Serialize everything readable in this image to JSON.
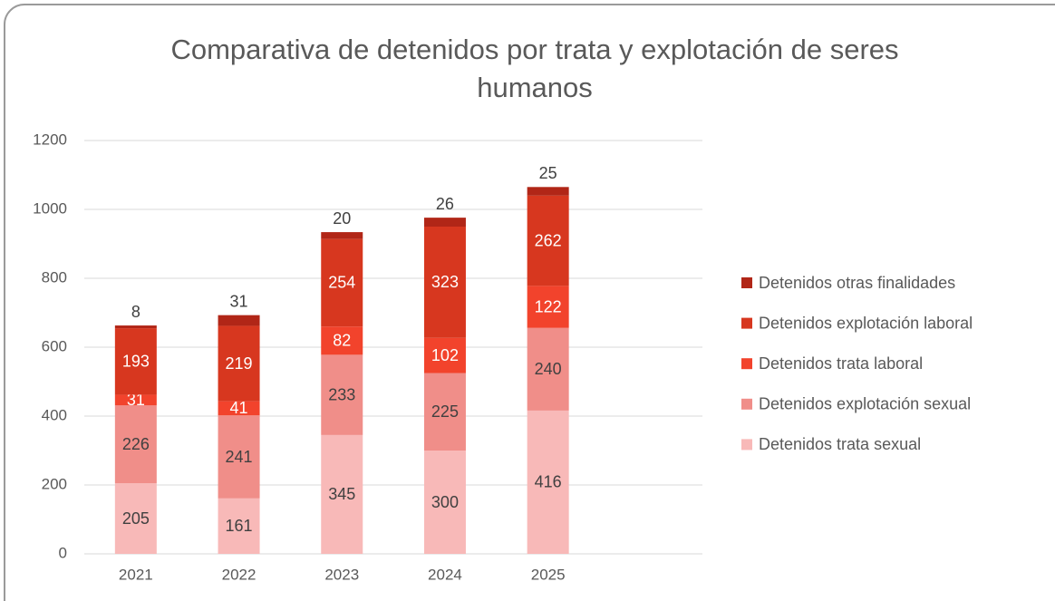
{
  "chart_data": {
    "type": "stacked_bar",
    "title": "Comparativa de detenidos por trata y explotación de seres humanos",
    "categories": [
      "2021",
      "2022",
      "2023",
      "2024",
      "2025"
    ],
    "series": [
      {
        "name": "Detenidos trata sexual",
        "color": "#f8b9b8",
        "values": [
          205,
          161,
          345,
          300,
          416
        ]
      },
      {
        "name": "Detenidos explotación sexual",
        "color": "#f08e89",
        "values": [
          226,
          241,
          233,
          225,
          240
        ]
      },
      {
        "name": "Detenidos trata laboral",
        "color": "#f2432c",
        "values": [
          31,
          41,
          82,
          102,
          122
        ]
      },
      {
        "name": "Detenidos explotación laboral",
        "color": "#d7371f",
        "values": [
          193,
          219,
          254,
          323,
          262
        ]
      },
      {
        "name": "Detenidos otras finalidades",
        "color": "#b12617",
        "values": [
          8,
          31,
          20,
          26,
          25
        ]
      }
    ],
    "ylim": [
      0,
      1200
    ],
    "yticks": [
      0,
      200,
      400,
      600,
      800,
      1000,
      1200
    ],
    "grid": true,
    "legend": "right"
  }
}
